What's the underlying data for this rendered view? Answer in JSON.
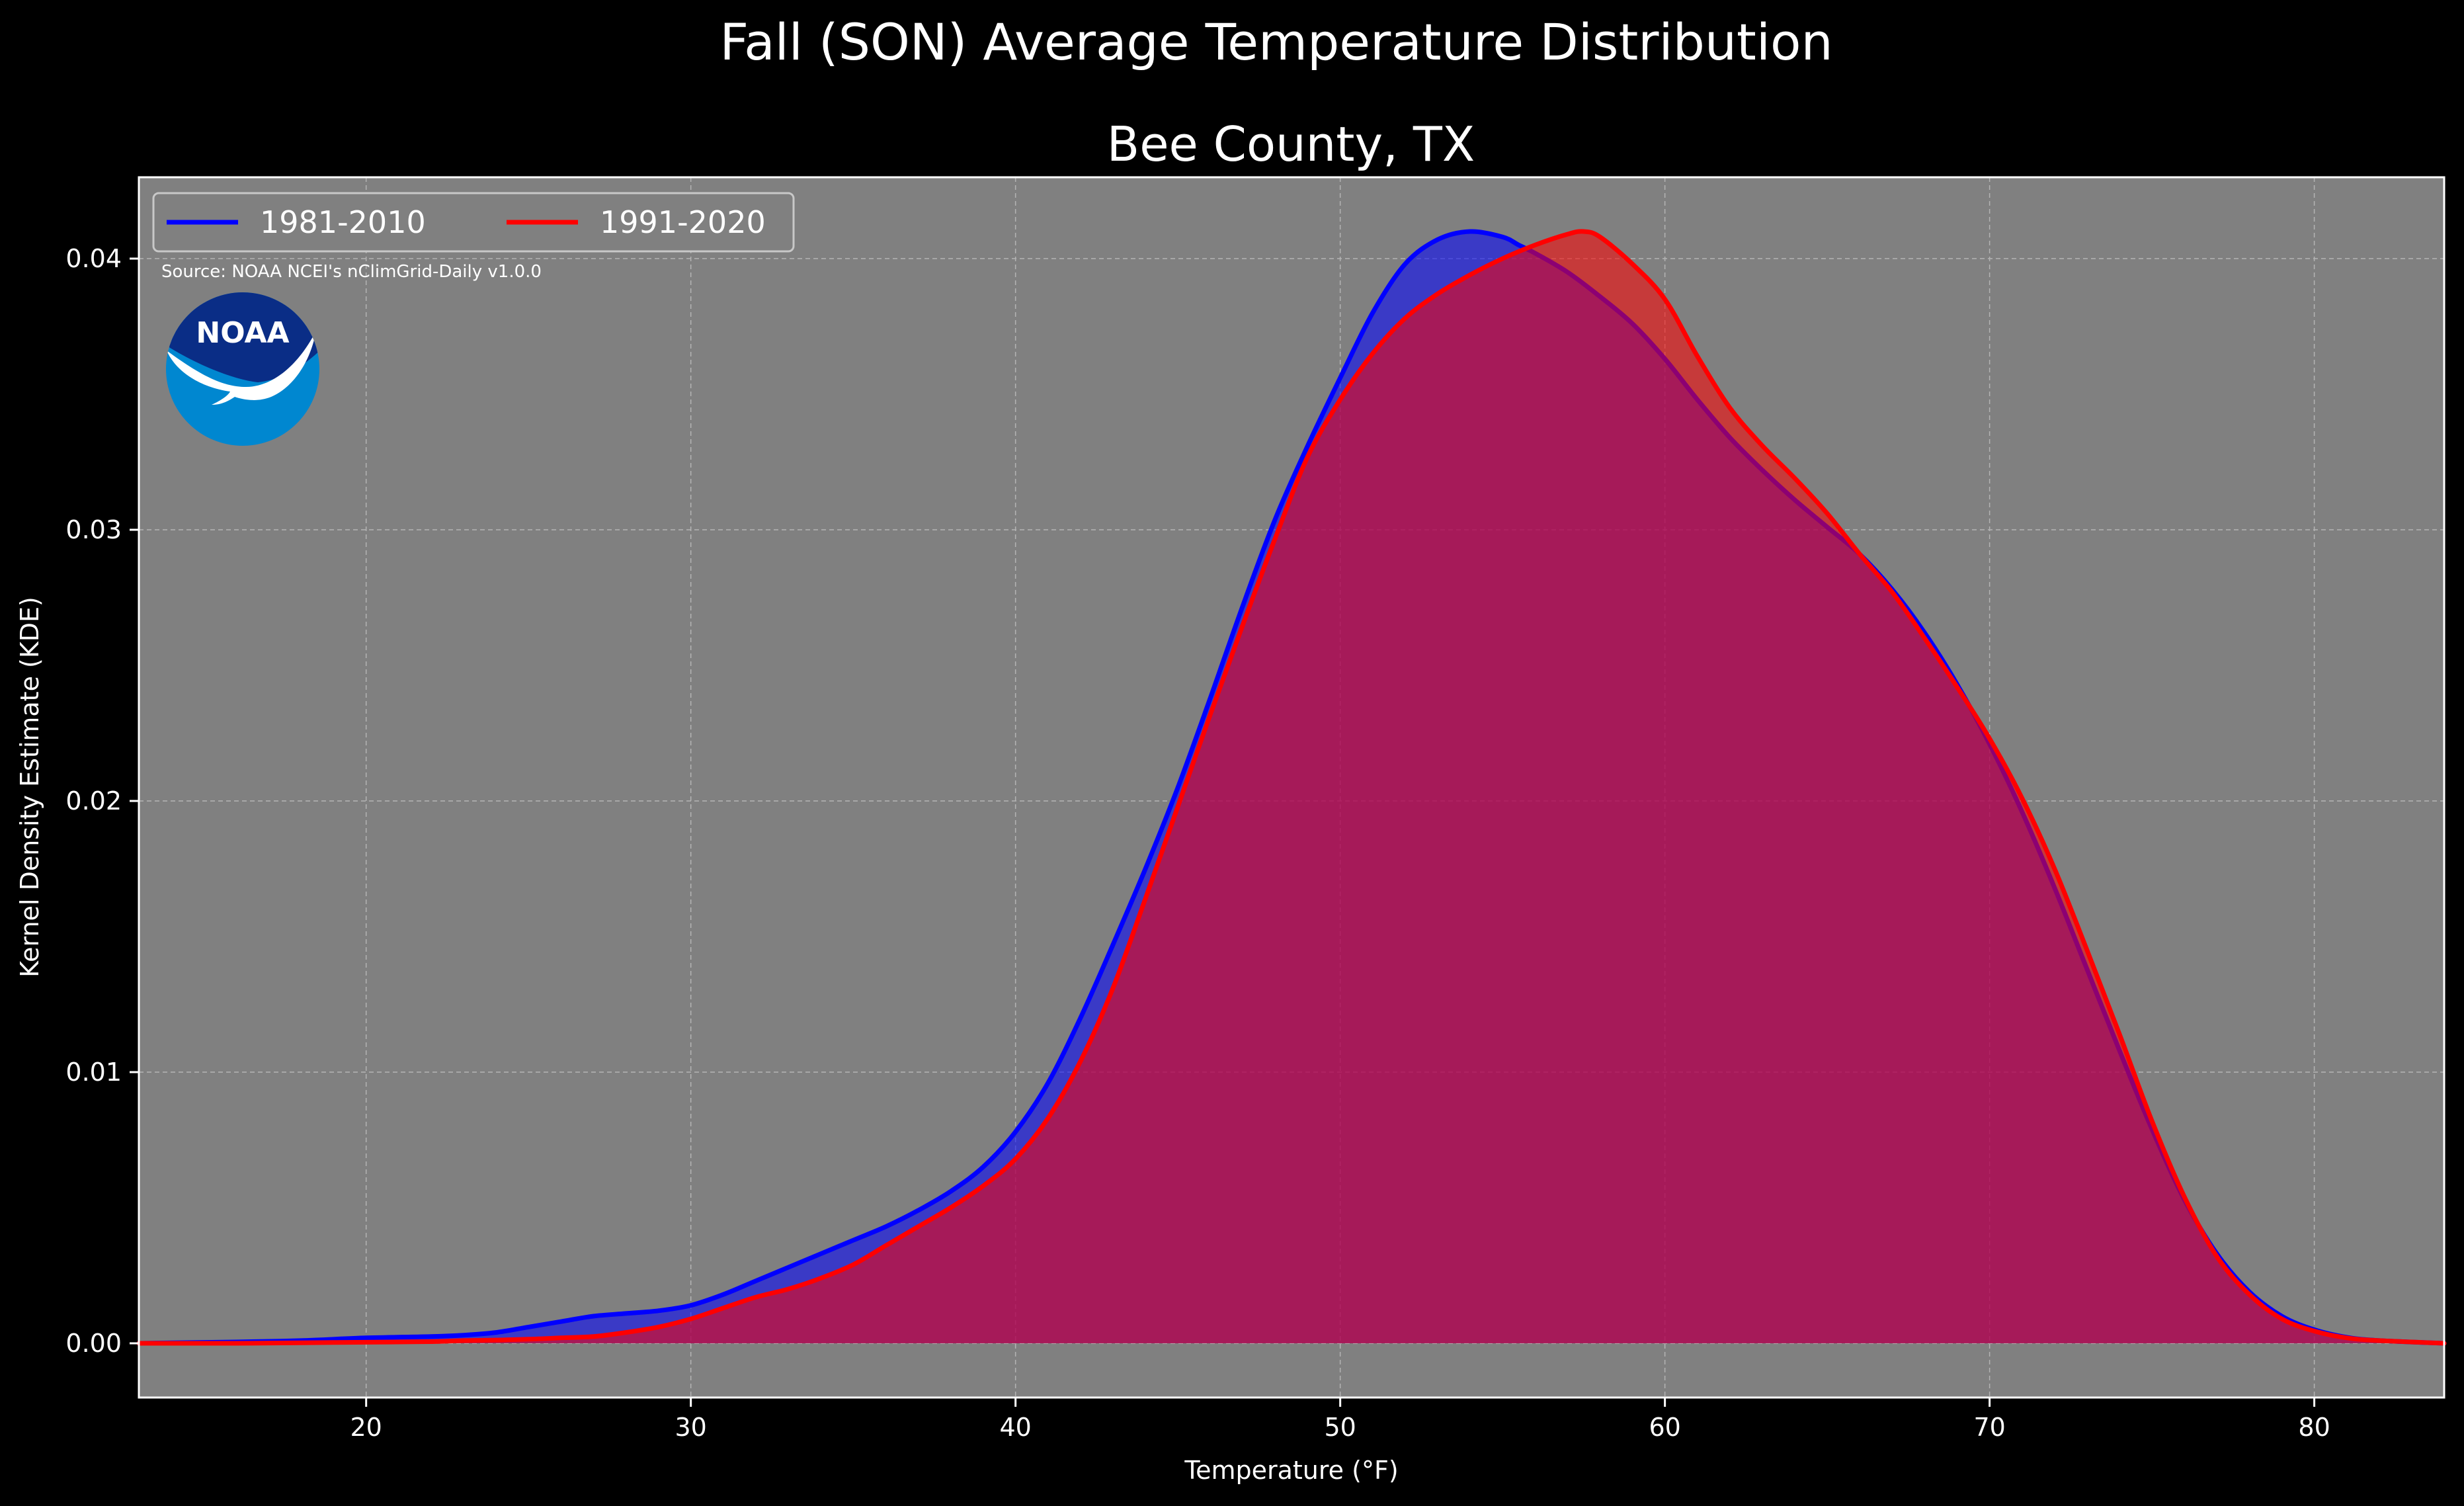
{
  "chart_data": {
    "type": "area",
    "suptitle": "Fall (SON) Average Temperature Distribution",
    "title": "Bee County, TX",
    "xlabel": "Temperature (°F)",
    "ylabel": "Kernel Density Estimate (KDE)",
    "xlim": [
      13,
      84
    ],
    "ylim": [
      -0.002,
      0.043
    ],
    "xticks": [
      20,
      30,
      40,
      50,
      60,
      70,
      80
    ],
    "yticks": [
      0.0,
      0.01,
      0.02,
      0.03,
      0.04
    ],
    "ytick_labels": [
      "0.00",
      "0.01",
      "0.02",
      "0.03",
      "0.04"
    ],
    "grid": true,
    "legend_position": "top-left",
    "source_note": "Source: NOAA NCEI's nClimGrid-Daily v1.0.0",
    "logo_text": "NOAA",
    "plot_background": "#808080",
    "series": [
      {
        "name": "1981-2010",
        "color": "#0000ff",
        "x": [
          13,
          16,
          18,
          20,
          22,
          23,
          24,
          25,
          26,
          27,
          28,
          29,
          30,
          31,
          32,
          33,
          34,
          35,
          36,
          37,
          38,
          39,
          40,
          41,
          42,
          43,
          44,
          45,
          46,
          47,
          48,
          49,
          50,
          51,
          52,
          53,
          54,
          55,
          55.5,
          56,
          57,
          58,
          59,
          60,
          61,
          62,
          63,
          64,
          65,
          66,
          67,
          68,
          69,
          70,
          71,
          72,
          73,
          74,
          75,
          76,
          77,
          78,
          79,
          80,
          81,
          82,
          84
        ],
        "values": [
          0.0,
          5e-05,
          0.0001,
          0.0002,
          0.00025,
          0.0003,
          0.0004,
          0.0006,
          0.0008,
          0.001,
          0.0011,
          0.0012,
          0.0014,
          0.0018,
          0.0023,
          0.0028,
          0.0033,
          0.0038,
          0.0043,
          0.0049,
          0.0056,
          0.0065,
          0.0078,
          0.0096,
          0.012,
          0.0147,
          0.0175,
          0.0205,
          0.0238,
          0.0272,
          0.0304,
          0.0331,
          0.0356,
          0.038,
          0.0398,
          0.0407,
          0.041,
          0.0408,
          0.0405,
          0.0402,
          0.0395,
          0.0386,
          0.0376,
          0.0363,
          0.0348,
          0.0334,
          0.0322,
          0.0311,
          0.0301,
          0.0291,
          0.0278,
          0.0262,
          0.0243,
          0.0221,
          0.0196,
          0.0168,
          0.0138,
          0.0108,
          0.0079,
          0.0053,
          0.0033,
          0.0019,
          0.001,
          0.0005,
          0.00022,
          0.0001,
          0.0
        ]
      },
      {
        "name": "1991-2020",
        "color": "#ff0000",
        "x": [
          13,
          16,
          18,
          20,
          22,
          23,
          24,
          25,
          26,
          27,
          28,
          29,
          30,
          31,
          32,
          33,
          34,
          35,
          36,
          37,
          38,
          39,
          40,
          41,
          42,
          43,
          44,
          45,
          46,
          47,
          48,
          49,
          50,
          51,
          52,
          53,
          54,
          55,
          56,
          57,
          57.5,
          58,
          59,
          60,
          61,
          62,
          63,
          64,
          65,
          66,
          67,
          68,
          69,
          70,
          71,
          72,
          73,
          74,
          75,
          76,
          77,
          78,
          79,
          80,
          81,
          82,
          84
        ],
        "values": [
          0.0,
          0.0,
          2e-05,
          4e-05,
          6e-05,
          0.0001,
          0.00012,
          0.00015,
          0.0002,
          0.00025,
          0.0004,
          0.0006,
          0.0009,
          0.0013,
          0.0017,
          0.002,
          0.0024,
          0.0029,
          0.0036,
          0.0043,
          0.005,
          0.0058,
          0.0068,
          0.0083,
          0.0104,
          0.0131,
          0.0164,
          0.0198,
          0.0232,
          0.0265,
          0.0297,
          0.0327,
          0.0348,
          0.0365,
          0.0378,
          0.0387,
          0.0394,
          0.04,
          0.0405,
          0.0409,
          0.041,
          0.0408,
          0.0398,
          0.0385,
          0.0364,
          0.0345,
          0.0331,
          0.0319,
          0.0306,
          0.0291,
          0.0277,
          0.026,
          0.0242,
          0.0223,
          0.0201,
          0.0175,
          0.0145,
          0.0114,
          0.0082,
          0.0054,
          0.0032,
          0.0018,
          0.0009,
          0.00045,
          0.0002,
          0.0001,
          0.0
        ]
      }
    ]
  }
}
